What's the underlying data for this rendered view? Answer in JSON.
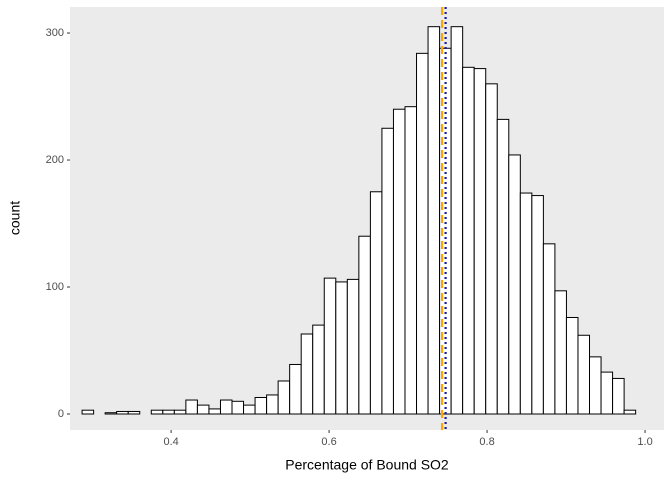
{
  "chart_data": {
    "type": "histogram",
    "x_label": "Percentage of Bound SO2",
    "y_label": "count",
    "bins": [
      0.2873,
      0.3019,
      0.3165,
      0.3311,
      0.3457,
      0.3603,
      0.3749,
      0.3895,
      0.4041,
      0.4187,
      0.4333,
      0.4479,
      0.4625,
      0.4771,
      0.4917,
      0.5063,
      0.5209,
      0.5355,
      0.5501,
      0.5647,
      0.5793,
      0.5939,
      0.6085,
      0.6231,
      0.6377,
      0.6523,
      0.6669,
      0.6815,
      0.6961,
      0.7107,
      0.7253,
      0.7399,
      0.7545,
      0.7691,
      0.7837,
      0.7983,
      0.8129,
      0.8275,
      0.8421,
      0.8567,
      0.8713,
      0.8859,
      0.9005,
      0.9151,
      0.9297,
      0.9443,
      0.9589,
      0.9735,
      0.9881
    ],
    "values": [
      3,
      0,
      1,
      2,
      2,
      0,
      3,
      3,
      3,
      11,
      7,
      4,
      11,
      10,
      7,
      13,
      15,
      26,
      39,
      63,
      70,
      107,
      104,
      106,
      140,
      175,
      225,
      240,
      242,
      284,
      305,
      288,
      305,
      273,
      272,
      260,
      232,
      204,
      174,
      172,
      134,
      97,
      76,
      62,
      45,
      33,
      28,
      3
    ],
    "fill": "#ffffff",
    "edge_color": "#000000",
    "vlines": [
      {
        "value": 0.743,
        "color": "#ffa500",
        "style": "dashed"
      },
      {
        "value": 0.7475,
        "color": "#1a1aa0",
        "style": "dotted"
      }
    ],
    "xlim": [
      0.272,
      1.024
    ],
    "ylim": [
      -12.6,
      320.5
    ],
    "xticks": [
      0.4,
      0.6,
      0.8,
      {
        "value": 1,
        "label": "1.0"
      }
    ],
    "yticks": [
      0,
      100,
      200,
      300
    ],
    "grid": false
  }
}
